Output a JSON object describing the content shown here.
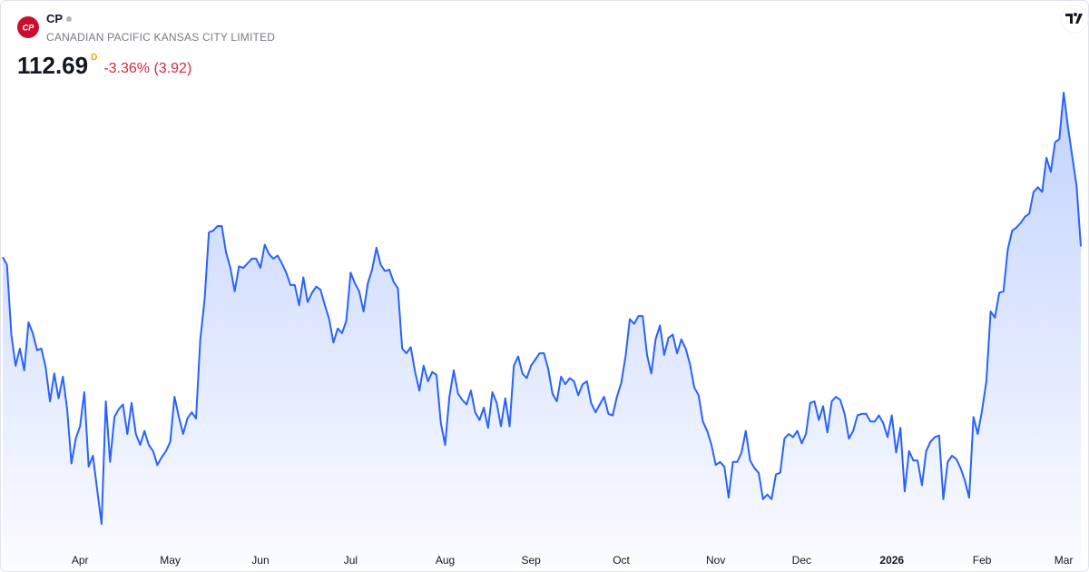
{
  "chart_data": {
    "type": "area",
    "logo_text": "CP",
    "symbol": "CP",
    "company": "CANADIAN PACIFIC KANSAS CITY LIMITED",
    "price": "112.69",
    "price_suffix": "D",
    "change": "-3.36% (3.92)",
    "color": "#2962ff",
    "ylim": [
      92,
      125
    ],
    "categories": [
      null,
      null,
      null,
      null,
      null,
      null,
      null,
      null,
      null,
      null,
      null,
      null,
      null,
      null,
      null,
      null,
      null,
      null,
      "Apr",
      null,
      null,
      null,
      null,
      null,
      null,
      null,
      null,
      null,
      null,
      null,
      null,
      null,
      null,
      null,
      null,
      null,
      null,
      null,
      null,
      "May",
      null,
      null,
      null,
      null,
      null,
      null,
      null,
      null,
      null,
      null,
      null,
      null,
      null,
      null,
      null,
      null,
      null,
      null,
      null,
      null,
      "Jun",
      null,
      null,
      null,
      null,
      null,
      null,
      null,
      null,
      null,
      null,
      null,
      null,
      null,
      null,
      null,
      null,
      null,
      null,
      null,
      null,
      "Jul",
      null,
      null,
      null,
      null,
      null,
      null,
      null,
      null,
      null,
      null,
      null,
      null,
      null,
      null,
      null,
      null,
      null,
      null,
      null,
      null,
      null,
      "Aug",
      null,
      null,
      null,
      null,
      null,
      null,
      null,
      null,
      null,
      null,
      null,
      null,
      null,
      null,
      null,
      null,
      null,
      null,
      null,
      "Sep",
      null,
      null,
      null,
      null,
      null,
      null,
      null,
      null,
      null,
      null,
      null,
      null,
      null,
      null,
      null,
      null,
      null,
      null,
      null,
      null,
      "Oct",
      null,
      null,
      null,
      null,
      null,
      null,
      null,
      null,
      null,
      null,
      null,
      null,
      null,
      null,
      null,
      null,
      null,
      null,
      null,
      null,
      null,
      "Nov",
      null,
      null,
      null,
      null,
      null,
      null,
      null,
      null,
      null,
      null,
      null,
      null,
      null,
      null,
      null,
      null,
      null,
      null,
      null,
      "Dec",
      null,
      null,
      null,
      null,
      null,
      null,
      null,
      null,
      null,
      null,
      null,
      null,
      null,
      null,
      null,
      null,
      null,
      null,
      null,
      null,
      "2026",
      null,
      null,
      null,
      null,
      null,
      null,
      null,
      null,
      null,
      null,
      null,
      null,
      null,
      null,
      null,
      null,
      null,
      null,
      null,
      null,
      "Feb",
      null,
      null,
      null,
      null,
      null,
      null,
      null,
      null,
      null,
      null,
      null,
      null,
      null,
      null,
      null,
      null,
      null,
      null,
      "Mar",
      null,
      null,
      null,
      null
    ],
    "values": [
      112.0,
      111.5,
      107.0,
      105.0,
      106.1,
      104.7,
      107.8,
      107.1,
      106.0,
      106.1,
      104.9,
      102.7,
      104.5,
      102.9,
      104.3,
      102.2,
      98.7,
      100.3,
      101.1,
      103.3,
      98.5,
      99.2,
      97.0,
      94.8,
      102.7,
      98.8,
      101.7,
      102.2,
      102.5,
      100.6,
      102.6,
      100.6,
      99.9,
      100.8,
      99.9,
      99.5,
      98.6,
      99.1,
      99.5,
      100.1,
      103.0,
      101.7,
      100.6,
      101.6,
      102.0,
      101.6,
      106.7,
      109.3,
      113.6,
      113.7,
      114.0,
      114.0,
      112.3,
      111.3,
      109.8,
      111.4,
      111.3,
      111.6,
      111.9,
      111.9,
      111.3,
      112.8,
      112.2,
      111.9,
      112.1,
      111.6,
      111.0,
      110.2,
      110.2,
      108.9,
      110.7,
      109.1,
      109.7,
      110.1,
      109.9,
      108.9,
      108.0,
      106.5,
      107.4,
      107.1,
      107.9,
      111.0,
      110.3,
      109.8,
      108.5,
      110.3,
      111.2,
      112.6,
      111.5,
      111.1,
      111.2,
      110.4,
      110.0,
      106.1,
      105.8,
      106.2,
      104.6,
      103.4,
      105.0,
      104.0,
      104.6,
      104.4,
      101.3,
      99.9,
      103.0,
      104.7,
      103.2,
      102.8,
      102.5,
      103.4,
      102.0,
      101.5,
      102.3,
      101.0,
      103.3,
      102.6,
      101.1,
      102.9,
      101.1,
      105.0,
      105.6,
      104.5,
      104.2,
      105.0,
      105.4,
      105.8,
      105.8,
      104.8,
      103.2,
      102.7,
      104.3,
      103.8,
      104.2,
      104.0,
      103.1,
      103.8,
      104.0,
      102.6,
      102.0,
      102.5,
      103.0,
      101.9,
      101.8,
      103.0,
      103.9,
      105.6,
      108.0,
      107.7,
      108.2,
      108.2,
      105.7,
      104.5,
      106.7,
      107.6,
      105.7,
      106.8,
      107.0,
      105.8,
      106.7,
      106.1,
      105.1,
      103.6,
      103.1,
      101.4,
      100.8,
      99.9,
      98.6,
      98.8,
      98.5,
      96.5,
      98.8,
      98.8,
      99.4,
      100.8,
      98.9,
      98.4,
      98.1,
      96.4,
      96.7,
      96.4,
      98.0,
      98.1,
      100.3,
      100.6,
      100.4,
      100.8,
      100.0,
      100.6,
      102.6,
      102.7,
      101.5,
      102.4,
      100.7,
      102.7,
      103.0,
      102.8,
      101.9,
      100.3,
      100.8,
      101.8,
      101.9,
      101.9,
      101.4,
      101.4,
      101.8,
      101.3,
      100.4,
      101.8,
      99.4,
      101.0,
      96.9,
      99.5,
      98.9,
      98.9,
      97.3,
      99.5,
      100.1,
      100.4,
      100.5,
      96.4,
      98.8,
      99.2,
      99.0,
      98.4,
      97.6,
      96.5,
      101.7,
      100.6,
      102.1,
      104.0,
      108.5,
      108.1,
      109.7,
      109.8,
      112.5,
      113.7,
      113.9,
      114.2,
      114.6,
      114.8,
      116.2,
      116.5,
      116.2,
      118.4,
      117.5,
      119.4,
      119.6,
      122.6,
      120.4,
      118.5,
      116.6,
      112.69
    ]
  }
}
